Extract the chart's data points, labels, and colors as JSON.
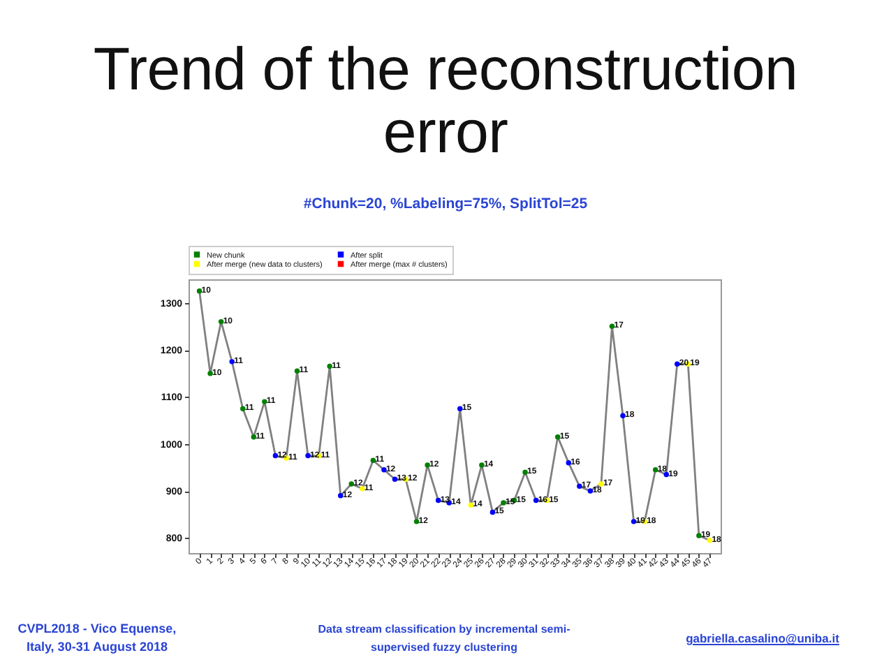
{
  "chart_data": {
    "type": "line",
    "title": "Trend of the reconstruction error",
    "subtitle": "#Chunk=20, %Labeling=75%, SplitTol=25",
    "categories": [
      "0",
      "1",
      "2",
      "3",
      "4",
      "5",
      "6",
      "7",
      "8",
      "9",
      "10",
      "11",
      "12",
      "13",
      "14",
      "15",
      "16",
      "17",
      "18",
      "19",
      "20",
      "21",
      "22",
      "23",
      "24",
      "25",
      "26",
      "27",
      "28",
      "29",
      "30",
      "31",
      "32",
      "33",
      "34",
      "35",
      "36",
      "37",
      "38",
      "39",
      "40",
      "41",
      "42",
      "43",
      "44",
      "45",
      "46",
      "47"
    ],
    "ylim": [
      768,
      1350
    ],
    "yticks": [
      800,
      900,
      1000,
      1100,
      1200,
      1300
    ],
    "legend": "top",
    "marker": "circle",
    "series": [
      {
        "type": "line",
        "color": "#808080",
        "marker": "none",
        "values": [
          1325,
          1150,
          1260,
          1175,
          1075,
          1015,
          1090,
          975,
          970,
          1155,
          975,
          975,
          1165,
          890,
          915,
          905,
          965,
          945,
          925,
          925,
          835,
          955,
          880,
          875,
          1075,
          870,
          955,
          855,
          875,
          880,
          940,
          880,
          880,
          1015,
          960,
          910,
          900,
          915,
          1250,
          1060,
          835,
          835,
          945,
          935,
          1170,
          1170,
          805,
          795
        ]
      },
      {
        "type": "scatter",
        "name": "New chunk",
        "color": "#008000",
        "values": [
          1325,
          1150,
          1260,
          null,
          1075,
          1015,
          1090,
          null,
          null,
          1155,
          null,
          null,
          1165,
          null,
          915,
          null,
          965,
          null,
          null,
          null,
          835,
          955,
          null,
          null,
          null,
          null,
          955,
          null,
          875,
          880,
          940,
          null,
          null,
          1015,
          null,
          null,
          null,
          null,
          1250,
          null,
          null,
          null,
          945,
          null,
          null,
          null,
          805,
          null
        ]
      },
      {
        "type": "scatter",
        "name": "After split",
        "color": "#0000ff",
        "values": [
          null,
          null,
          null,
          1175,
          null,
          null,
          null,
          975,
          null,
          null,
          975,
          null,
          null,
          890,
          null,
          null,
          null,
          945,
          925,
          null,
          null,
          null,
          880,
          875,
          1075,
          null,
          null,
          855,
          null,
          null,
          null,
          880,
          null,
          null,
          960,
          910,
          900,
          null,
          null,
          1060,
          835,
          null,
          null,
          935,
          1170,
          null,
          null,
          null
        ]
      },
      {
        "type": "scatter",
        "name": "After merge (new data to clusters)",
        "color": "#ffff00",
        "values": [
          null,
          null,
          null,
          null,
          null,
          null,
          null,
          null,
          970,
          null,
          null,
          975,
          null,
          null,
          null,
          905,
          null,
          null,
          null,
          925,
          null,
          null,
          null,
          null,
          null,
          870,
          null,
          null,
          null,
          null,
          null,
          null,
          880,
          null,
          null,
          null,
          null,
          915,
          null,
          null,
          null,
          835,
          null,
          null,
          null,
          1170,
          null,
          795
        ]
      },
      {
        "type": "scatter",
        "name": "After merge (max # clusters)",
        "color": "#ff0000",
        "values": [
          null,
          null,
          null,
          null,
          null,
          null,
          null,
          null,
          null,
          null,
          null,
          null,
          null,
          null,
          null,
          null,
          null,
          null,
          null,
          null,
          null,
          null,
          null,
          null,
          null,
          null,
          null,
          null,
          null,
          null,
          null,
          null,
          null,
          null,
          null,
          null,
          null,
          null,
          null,
          null,
          null,
          null,
          null,
          null,
          null,
          null,
          null,
          null
        ]
      }
    ],
    "annotations": [
      "CVPL2018 - Vico Equense, Italy, 30-31 August 2018",
      "Data stream classification by incremental semi-supervised fuzzy clustering",
      "gabriella.casalino@uniba.it",
      {
        "text": "10",
        "x": "0",
        "y": 1325
      },
      {
        "text": "10",
        "x": "1",
        "y": 1150
      },
      {
        "text": "10",
        "x": "2",
        "y": 1260
      },
      {
        "text": "11",
        "x": "3",
        "y": 1175
      },
      {
        "text": "11",
        "x": "4",
        "y": 1075
      },
      {
        "text": "11",
        "x": "5",
        "y": 1015
      },
      {
        "text": "11",
        "x": "6",
        "y": 1090
      },
      {
        "text": "12",
        "x": "7",
        "y": 975
      },
      {
        "text": "11",
        "x": "8",
        "y": 970
      },
      {
        "text": "11",
        "x": "9",
        "y": 1155
      },
      {
        "text": "12",
        "x": "10",
        "y": 975
      },
      {
        "text": "11",
        "x": "11",
        "y": 975
      },
      {
        "text": "11",
        "x": "12",
        "y": 1165
      },
      {
        "text": "12",
        "x": "13",
        "y": 890
      },
      {
        "text": "12",
        "x": "14",
        "y": 915
      },
      {
        "text": "11",
        "x": "15",
        "y": 905
      },
      {
        "text": "11",
        "x": "16",
        "y": 965
      },
      {
        "text": "12",
        "x": "17",
        "y": 945
      },
      {
        "text": "13",
        "x": "18",
        "y": 925
      },
      {
        "text": "12",
        "x": "19",
        "y": 925
      },
      {
        "text": "12",
        "x": "20",
        "y": 835
      },
      {
        "text": "12",
        "x": "21",
        "y": 955
      },
      {
        "text": "13",
        "x": "22",
        "y": 880
      },
      {
        "text": "14",
        "x": "23",
        "y": 875
      },
      {
        "text": "15",
        "x": "24",
        "y": 1075
      },
      {
        "text": "14",
        "x": "25",
        "y": 870
      },
      {
        "text": "14",
        "x": "26",
        "y": 955
      },
      {
        "text": "15",
        "x": "27",
        "y": 855
      },
      {
        "text": "15",
        "x": "28",
        "y": 875
      },
      {
        "text": "15",
        "x": "29",
        "y": 880
      },
      {
        "text": "15",
        "x": "30",
        "y": 940
      },
      {
        "text": "16",
        "x": "31",
        "y": 880
      },
      {
        "text": "15",
        "x": "32",
        "y": 880
      },
      {
        "text": "15",
        "x": "33",
        "y": 1015
      },
      {
        "text": "16",
        "x": "34",
        "y": 960
      },
      {
        "text": "17",
        "x": "35",
        "y": 910
      },
      {
        "text": "18",
        "x": "36",
        "y": 900
      },
      {
        "text": "17",
        "x": "37",
        "y": 915
      },
      {
        "text": "17",
        "x": "38",
        "y": 1250
      },
      {
        "text": "18",
        "x": "39",
        "y": 1060
      },
      {
        "text": "19",
        "x": "40",
        "y": 835
      },
      {
        "text": "18",
        "x": "41",
        "y": 835
      },
      {
        "text": "18",
        "x": "42",
        "y": 945
      },
      {
        "text": "19",
        "x": "43",
        "y": 935
      },
      {
        "text": "20",
        "x": "44",
        "y": 1170
      },
      {
        "text": "19",
        "x": "45",
        "y": 1170
      },
      {
        "text": "19",
        "x": "46",
        "y": 805
      },
      {
        "text": "18",
        "x": "47",
        "y": 795
      }
    ]
  }
}
